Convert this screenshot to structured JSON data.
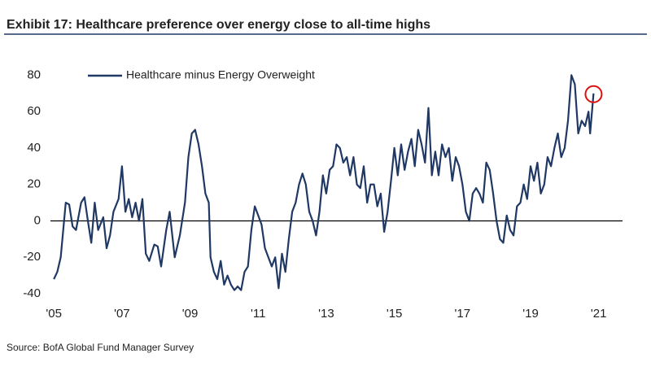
{
  "chart_data": {
    "type": "line",
    "title": "Exhibit 17: Healthcare preference over energy close to all-time highs",
    "source": "Source: BofA Global Fund Manager Survey",
    "xlim": [
      2004.9,
      2021.7
    ],
    "xticks": [
      {
        "value": 2005,
        "label": "'05"
      },
      {
        "value": 2007,
        "label": "'07"
      },
      {
        "value": 2009,
        "label": "'09"
      },
      {
        "value": 2011,
        "label": "'11"
      },
      {
        "value": 2013,
        "label": "'13"
      },
      {
        "value": 2015,
        "label": "'15"
      },
      {
        "value": 2017,
        "label": "'17"
      },
      {
        "value": 2019,
        "label": "'19"
      },
      {
        "value": 2021,
        "label": "'21"
      }
    ],
    "ylim": [
      -44,
      90
    ],
    "yticks": [
      -40,
      -20,
      0,
      20,
      40,
      60,
      80
    ],
    "grid": false,
    "legend": "top-left",
    "series": [
      {
        "name": "Healthcare minus Energy Overweight",
        "color": "#1f3864",
        "x": [
          2005.0,
          2005.1,
          2005.2,
          2005.35,
          2005.45,
          2005.55,
          2005.65,
          2005.8,
          2005.9,
          2006.0,
          2006.1,
          2006.2,
          2006.3,
          2006.45,
          2006.55,
          2006.65,
          2006.75,
          2006.9,
          2007.0,
          2007.1,
          2007.2,
          2007.3,
          2007.4,
          2007.5,
          2007.6,
          2007.7,
          2007.8,
          2007.95,
          2008.05,
          2008.15,
          2008.3,
          2008.4,
          2008.55,
          2008.7,
          2008.85,
          2008.95,
          2009.05,
          2009.15,
          2009.25,
          2009.35,
          2009.45,
          2009.55,
          2009.6,
          2009.7,
          2009.8,
          2009.9,
          2010.0,
          2010.1,
          2010.2,
          2010.3,
          2010.4,
          2010.5,
          2010.6,
          2010.7,
          2010.8,
          2010.9,
          2011.0,
          2011.1,
          2011.2,
          2011.3,
          2011.4,
          2011.5,
          2011.6,
          2011.7,
          2011.8,
          2011.9,
          2012.0,
          2012.1,
          2012.2,
          2012.3,
          2012.4,
          2012.5,
          2012.6,
          2012.7,
          2012.8,
          2012.9,
          2013.0,
          2013.1,
          2013.2,
          2013.3,
          2013.4,
          2013.5,
          2013.6,
          2013.7,
          2013.8,
          2013.9,
          2014.0,
          2014.1,
          2014.2,
          2014.3,
          2014.4,
          2014.5,
          2014.6,
          2014.7,
          2014.8,
          2014.9,
          2015.0,
          2015.1,
          2015.2,
          2015.3,
          2015.4,
          2015.5,
          2015.6,
          2015.7,
          2015.8,
          2015.9,
          2016.0,
          2016.1,
          2016.2,
          2016.3,
          2016.4,
          2016.5,
          2016.6,
          2016.7,
          2016.8,
          2016.9,
          2017.0,
          2017.1,
          2017.2,
          2017.3,
          2017.4,
          2017.5,
          2017.6,
          2017.7,
          2017.8,
          2017.9,
          2018.0,
          2018.1,
          2018.2,
          2018.3,
          2018.4,
          2018.5,
          2018.6,
          2018.7,
          2018.8,
          2018.9,
          2019.0,
          2019.1,
          2019.2,
          2019.3,
          2019.4,
          2019.5,
          2019.6,
          2019.7,
          2019.8,
          2019.9,
          2020.0,
          2020.1,
          2020.2,
          2020.3,
          2020.4,
          2020.5,
          2020.6,
          2020.7,
          2020.75,
          2020.85
        ],
        "values": [
          -32,
          -28,
          -20,
          10,
          9,
          -3,
          -5,
          10,
          13,
          0,
          -12,
          10,
          -5,
          2,
          -15,
          -8,
          5,
          12,
          30,
          5,
          12,
          2,
          10,
          0,
          12,
          -18,
          -22,
          -13,
          -14,
          -25,
          -5,
          5,
          -20,
          -8,
          10,
          35,
          48,
          50,
          42,
          30,
          15,
          10,
          -20,
          -28,
          -32,
          -22,
          -35,
          -30,
          -35,
          -38,
          -36,
          -38,
          -28,
          -25,
          -5,
          8,
          3,
          -2,
          -15,
          -20,
          -25,
          -20,
          -37,
          -18,
          -28,
          -10,
          5,
          10,
          20,
          26,
          20,
          5,
          0,
          -8,
          5,
          25,
          15,
          28,
          30,
          42,
          40,
          32,
          35,
          25,
          35,
          20,
          18,
          30,
          10,
          20,
          20,
          8,
          15,
          -6,
          5,
          22,
          40,
          25,
          42,
          28,
          38,
          45,
          30,
          50,
          42,
          32,
          62,
          25,
          38,
          25,
          42,
          35,
          40,
          22,
          35,
          30,
          20,
          5,
          0,
          15,
          18,
          15,
          10,
          32,
          28,
          15,
          0,
          -10,
          -12,
          3,
          -5,
          -8,
          8,
          10,
          20,
          12,
          30,
          22,
          32,
          15,
          20,
          35,
          30,
          40,
          48,
          35,
          40,
          55,
          80,
          75,
          48,
          55,
          52,
          60,
          48,
          70
        ]
      }
    ]
  }
}
